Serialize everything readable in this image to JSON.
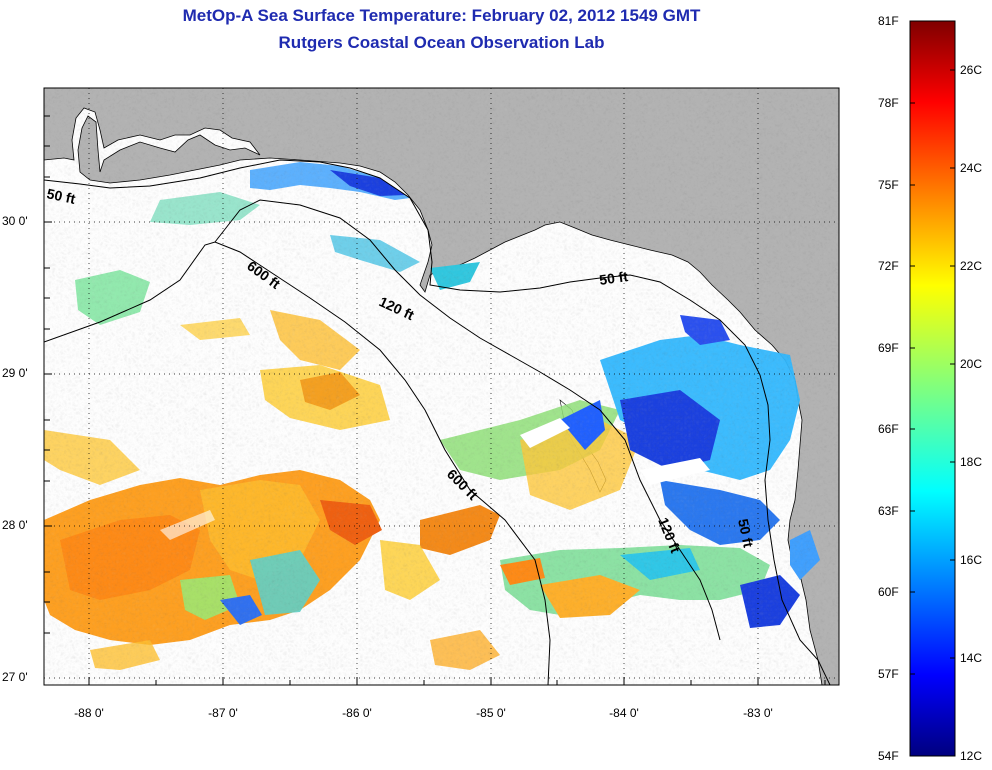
{
  "header": {
    "title": "MetOp-A Sea Surface Temperature:  February 02, 2012 1549 GMT",
    "subtitle": "Rutgers Coastal Ocean Observation Lab"
  },
  "map": {
    "lat_labels": [
      "30 0'",
      "29 0'",
      "28 0'",
      "27 0'"
    ],
    "lon_labels": [
      "-88 0'",
      "-87 0'",
      "-86 0'",
      "-85 0'",
      "-84 0'",
      "-83 0'"
    ],
    "contour_labels": [
      {
        "text": "50 ft"
      },
      {
        "text": "600 ft"
      },
      {
        "text": "120 ft"
      },
      {
        "text": "50 ft"
      },
      {
        "text": "600 ft"
      },
      {
        "text": "120 ft"
      },
      {
        "text": "50 ft"
      }
    ],
    "colors": {
      "land": "#b3b3b3",
      "no_data": "#ffffff",
      "grid": "#000000",
      "contour": "#000000"
    }
  },
  "colorbar": {
    "fahrenheit_labels": [
      "81F",
      "78F",
      "75F",
      "72F",
      "69F",
      "66F",
      "63F",
      "60F",
      "57F",
      "54F"
    ],
    "celsius_labels": [
      "26C",
      "24C",
      "22C",
      "20C",
      "18C",
      "16C",
      "14C",
      "12C"
    ],
    "fahrenheit_range": [
      54,
      81
    ],
    "celsius_range": [
      12,
      27
    ],
    "colormap": "jet"
  }
}
